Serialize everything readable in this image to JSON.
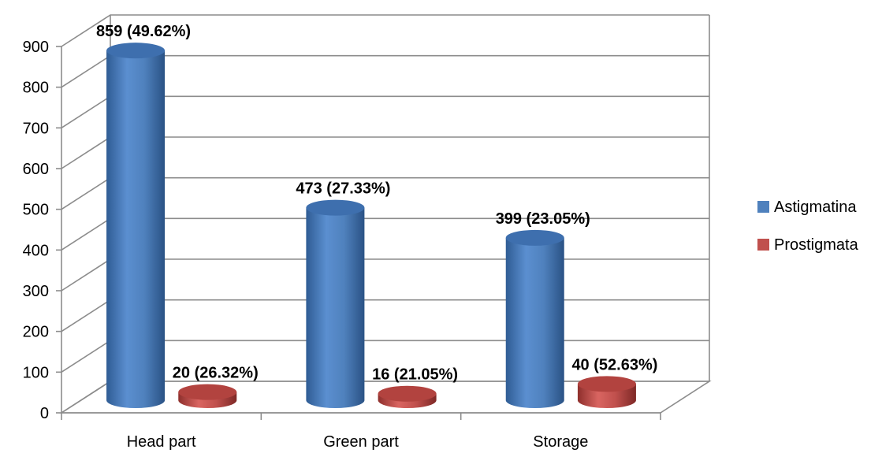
{
  "chart_data": {
    "type": "bar",
    "title": "",
    "xlabel": "",
    "ylabel": "",
    "ylim": [
      0,
      900
    ],
    "y_ticks": [
      "0",
      "100",
      "200",
      "300",
      "400",
      "500",
      "600",
      "700",
      "800",
      "900"
    ],
    "grid": true,
    "legend_position": "right",
    "categories": [
      "Head part",
      "Green part",
      "Storage"
    ],
    "series": [
      {
        "name": "Astigmatina",
        "color": "#4F81BD",
        "values": [
          859,
          473,
          399
        ],
        "labels": [
          "859 (49.62%)",
          "473 (27.33%)",
          "399 (23.05%)"
        ]
      },
      {
        "name": "Prostigmata",
        "color": "#C0504D",
        "values": [
          20,
          16,
          40
        ],
        "labels": [
          "20 (26.32%)",
          "16 (21.05%)",
          "40 (52.63%)"
        ]
      }
    ]
  }
}
